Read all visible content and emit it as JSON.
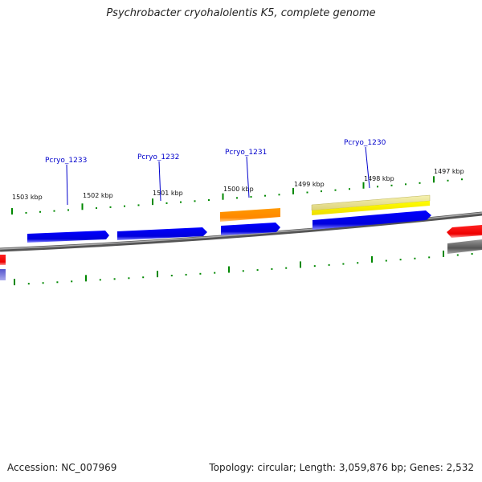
{
  "title": "Psychrobacter cryohalolentis K5, complete genome",
  "accession": "Accession: NC_007969",
  "summary": "Topology: circular; Length: 3,059,876 bp; Genes: 2,532",
  "kbp_labels": [
    "1503 kbp",
    "1502 kbp",
    "1501 kbp",
    "1500 kbp",
    "1499 kbp",
    "1498 kbp",
    "1497 kbp"
  ],
  "gene_labels": [
    "Pcryo_1233",
    "Pcryo_1232",
    "Pcryo_1231",
    "Pcryo_1230"
  ],
  "colors": {
    "forward_cds": "#0000ff",
    "reverse_cds": "#ff0000",
    "orange_feature": "#ff8c00",
    "yellow_feature": "#ffee00",
    "pale_feature": "#eeee88",
    "backbone": "#777777",
    "ticks": "#008800",
    "label_text": "#0000cc"
  }
}
